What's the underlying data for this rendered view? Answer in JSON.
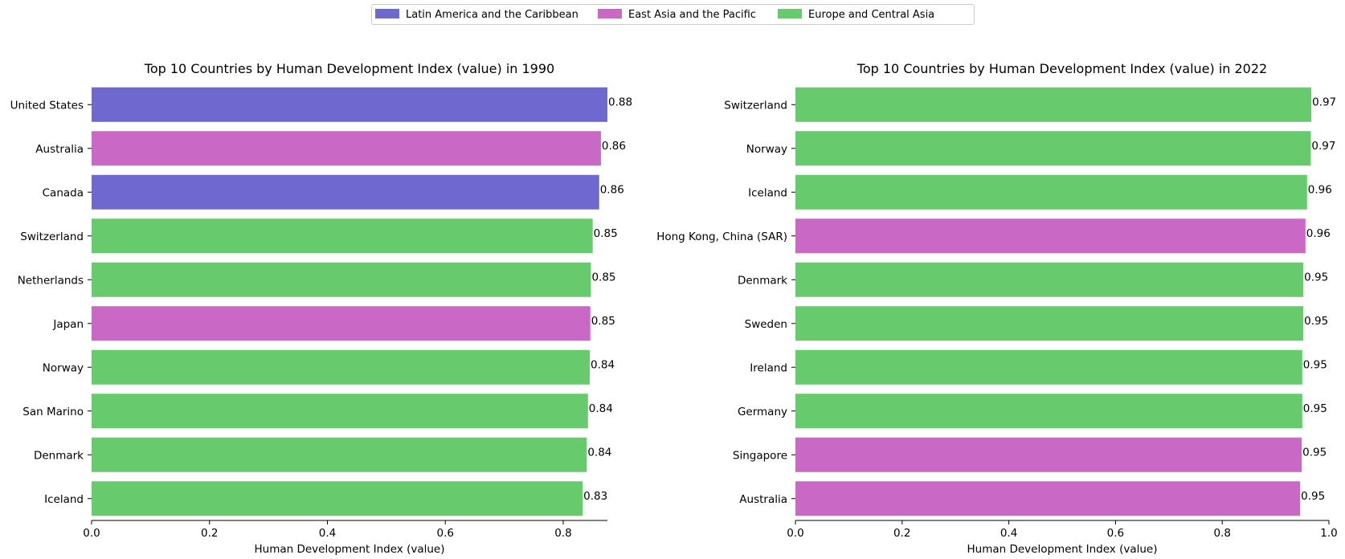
{
  "legend": [
    {
      "label": "Latin America and the Caribbean",
      "color": "#6f69cf"
    },
    {
      "label": "East Asia and the Pacific",
      "color": "#c968c5"
    },
    {
      "label": "Europe and Central Asia",
      "color": "#67cb6d"
    }
  ],
  "chart_data": [
    {
      "type": "bar",
      "orientation": "horizontal",
      "title": "Top 10 Countries by Human Development Index (value) in 1990",
      "xlabel": "Human Development Index (value)",
      "ylabel": "",
      "xlim": [
        0,
        0.875
      ],
      "xticks": [
        "0.0",
        "0.2",
        "0.4",
        "0.6",
        "0.8"
      ],
      "categories": [
        "United States",
        "Australia",
        "Canada",
        "Switzerland",
        "Netherlands",
        "Japan",
        "Norway",
        "San Marino",
        "Denmark",
        "Iceland"
      ],
      "values": [
        0.875,
        0.864,
        0.861,
        0.85,
        0.847,
        0.846,
        0.845,
        0.842,
        0.84,
        0.833
      ],
      "value_labels": [
        "0.88",
        "0.86",
        "0.86",
        "0.85",
        "0.85",
        "0.85",
        "0.84",
        "0.84",
        "0.84",
        "0.83"
      ],
      "regions": [
        0,
        1,
        0,
        2,
        2,
        1,
        2,
        2,
        2,
        2
      ]
    },
    {
      "type": "bar",
      "orientation": "horizontal",
      "title": "Top 10 Countries by Human Development Index (value) in 2022",
      "xlabel": "Human Development Index (value)",
      "ylabel": "",
      "xlim": [
        0,
        1.0
      ],
      "xticks": [
        "0.0",
        "0.2",
        "0.4",
        "0.6",
        "0.8",
        "1.0"
      ],
      "categories": [
        "Switzerland",
        "Norway",
        "Iceland",
        "Hong Kong, China (SAR)",
        "Denmark",
        "Sweden",
        "Ireland",
        "Germany",
        "Singapore",
        "Australia"
      ],
      "values": [
        0.967,
        0.966,
        0.959,
        0.956,
        0.952,
        0.952,
        0.95,
        0.95,
        0.949,
        0.946
      ],
      "value_labels": [
        "0.97",
        "0.97",
        "0.96",
        "0.96",
        "0.95",
        "0.95",
        "0.95",
        "0.95",
        "0.95",
        "0.95"
      ],
      "regions": [
        2,
        2,
        2,
        1,
        2,
        2,
        2,
        2,
        1,
        1
      ]
    }
  ]
}
